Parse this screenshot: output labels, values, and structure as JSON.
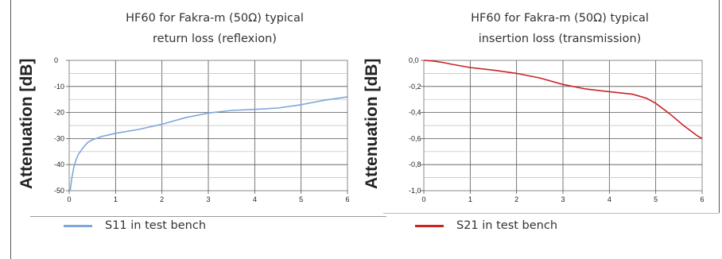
{
  "chart_data": [
    {
      "type": "line",
      "title_line1": "HF60 for Fakra-m (50Ω) typical",
      "title_line2": "return loss (reflexion)",
      "ylabel": "Attenuation [dB]",
      "xlabel": "",
      "xlim": [
        0,
        6
      ],
      "ylim": [
        -50,
        0
      ],
      "x_ticks": [
        "0",
        "1",
        "2",
        "3",
        "4",
        "5",
        "6"
      ],
      "y_ticks": [
        "0",
        "-10",
        "-20",
        "-30",
        "-40",
        "-50"
      ],
      "grid": true,
      "legend_position": "bottom-left",
      "series": [
        {
          "name": "S11 in test bench",
          "color": "#7ea6dc",
          "x": [
            0.02,
            0.05,
            0.1,
            0.15,
            0.2,
            0.3,
            0.4,
            0.5,
            0.7,
            1.0,
            1.5,
            2.0,
            2.5,
            3.0,
            3.5,
            4.0,
            4.5,
            5.0,
            5.5,
            6.0
          ],
          "y": [
            -50,
            -46,
            -41,
            -38,
            -36,
            -33.5,
            -31.5,
            -30.5,
            -29.2,
            -28,
            -26.5,
            -24.5,
            -22,
            -20.2,
            -19.2,
            -18.8,
            -18.3,
            -17,
            -15.3,
            -14
          ]
        }
      ]
    },
    {
      "type": "line",
      "title_line1": "HF60 for Fakra-m (50Ω) typical",
      "title_line2": "insertion loss (transmission)",
      "ylabel": "Attenuation [dB]",
      "xlabel": "",
      "xlim": [
        0,
        6
      ],
      "ylim": [
        -1.0,
        0
      ],
      "x_ticks": [
        "0",
        "1",
        "2",
        "3",
        "4",
        "5",
        "6"
      ],
      "y_ticks": [
        "0,0",
        "-0,2",
        "-0,4",
        "-0,6",
        "-0,8",
        "-1,0"
      ],
      "grid": true,
      "legend_position": "bottom-left",
      "series": [
        {
          "name": "S21 in test bench",
          "color": "#cc2222",
          "x": [
            0,
            0.2,
            0.4,
            0.6,
            1.0,
            1.5,
            2.0,
            2.5,
            3.0,
            3.5,
            4.0,
            4.5,
            4.8,
            5.0,
            5.3,
            5.6,
            5.9,
            6.0
          ],
          "y": [
            0.0,
            -0.005,
            -0.015,
            -0.03,
            -0.055,
            -0.075,
            -0.1,
            -0.135,
            -0.185,
            -0.22,
            -0.24,
            -0.26,
            -0.29,
            -0.33,
            -0.41,
            -0.5,
            -0.58,
            -0.6
          ]
        }
      ]
    }
  ]
}
